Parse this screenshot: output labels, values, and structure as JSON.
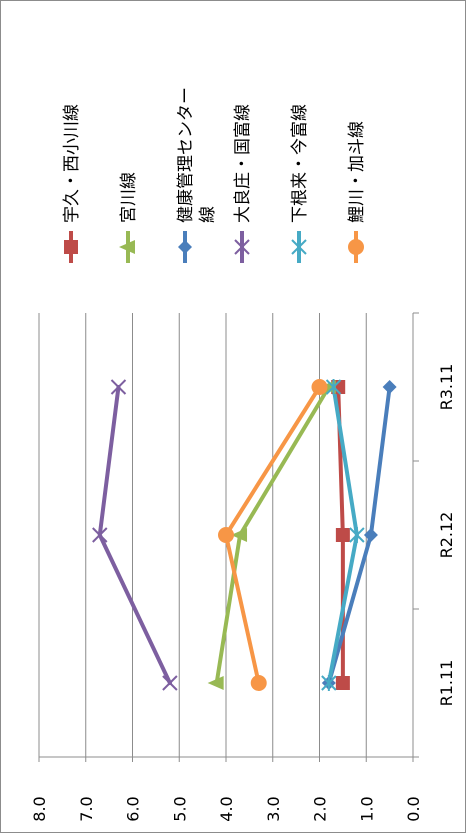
{
  "chart_data": {
    "type": "line",
    "orientation": "rotated-90-clockwise",
    "title": "",
    "xlabel": "",
    "ylabel": "",
    "categories": [
      "R1.11",
      "R2.12",
      "R3.11"
    ],
    "ylim": [
      0,
      8
    ],
    "ytick_labels": [
      "0.0",
      "1.0",
      "2.0",
      "3.0",
      "4.0",
      "5.0",
      "6.0",
      "7.0",
      "8.0"
    ],
    "grid": true,
    "legend_position": "right",
    "series": [
      {
        "name": "宇久・西小川線",
        "values": [
          1.5,
          1.5,
          1.6
        ],
        "color": "#be4b48",
        "marker": "square"
      },
      {
        "name": "宮川線",
        "values": [
          4.2,
          3.7,
          1.8
        ],
        "color": "#98b954",
        "marker": "triangle"
      },
      {
        "name": "健康管理センター線",
        "values": [
          1.8,
          0.9,
          0.5
        ],
        "color": "#4a7ebb",
        "marker": "diamond"
      },
      {
        "name": "大良庄・国富線",
        "values": [
          5.2,
          6.7,
          6.3
        ],
        "color": "#7d5fa0",
        "marker": "x"
      },
      {
        "name": "下根来・今富線",
        "values": [
          1.8,
          1.2,
          1.7
        ],
        "color": "#46aac5",
        "marker": "star"
      },
      {
        "name": "鯉川・加斗線",
        "values": [
          3.3,
          4.0,
          2.0
        ],
        "color": "#f79646",
        "marker": "circle"
      }
    ]
  }
}
